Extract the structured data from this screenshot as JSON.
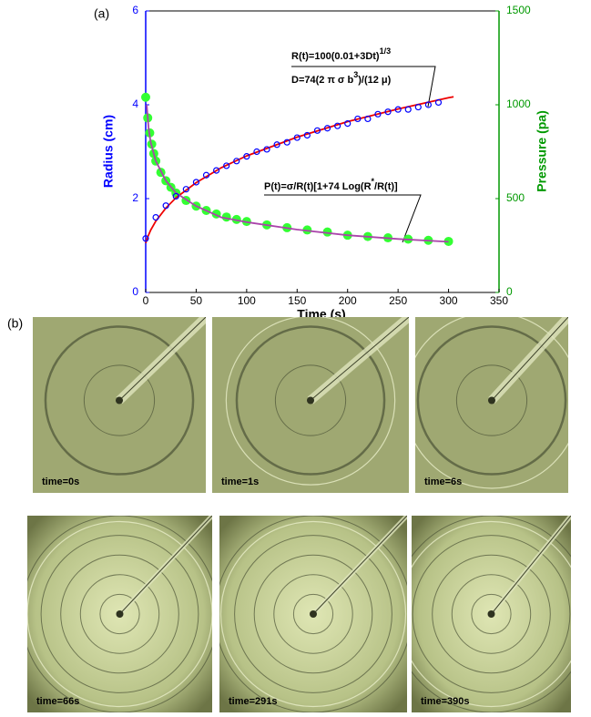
{
  "chart_data": {
    "type": "line",
    "panel_label": "(a)",
    "xlabel": "Time (s)",
    "ylabel": "Radius (cm)",
    "y2label": "Pressure (pa)",
    "y_color": "#0000ff",
    "y2_color": "#009900",
    "xlim": [
      0,
      350
    ],
    "xticks": [
      0,
      50,
      100,
      150,
      200,
      250,
      300,
      350
    ],
    "ylim": [
      0,
      6
    ],
    "yticks": [
      0,
      2,
      4,
      6
    ],
    "y2lim": [
      0,
      1500
    ],
    "y2ticks": [
      0,
      500,
      1000,
      1500
    ],
    "grid": false,
    "series": [
      {
        "marker": "open-circle",
        "color": "#0000ff",
        "x": [
          0,
          10,
          20,
          30,
          40,
          50,
          60,
          70,
          80,
          90,
          100,
          110,
          120,
          130,
          140,
          150,
          160,
          170,
          180,
          190,
          200,
          210,
          220,
          230,
          240,
          250,
          260,
          270,
          280,
          290
        ],
        "values": [
          1.15,
          1.6,
          1.85,
          2.05,
          2.2,
          2.35,
          2.5,
          2.6,
          2.7,
          2.8,
          2.9,
          3.0,
          3.05,
          3.15,
          3.2,
          3.3,
          3.35,
          3.45,
          3.5,
          3.55,
          3.6,
          3.7,
          3.7,
          3.8,
          3.85,
          3.9,
          3.9,
          3.95,
          4.0,
          4.05
        ]
      },
      {
        "marker": "line",
        "color": "#ee0000",
        "x": [
          0,
          2,
          5,
          10,
          20,
          30,
          50,
          75,
          100,
          150,
          200,
          250,
          300,
          305
        ],
        "values": [
          1.05,
          1.18,
          1.33,
          1.52,
          1.8,
          2.02,
          2.34,
          2.66,
          2.91,
          3.31,
          3.64,
          3.91,
          4.15,
          4.17
        ]
      },
      {
        "marker": "filled-circle",
        "color": "#33ff33",
        "axis": "y2",
        "x": [
          0,
          2,
          4,
          6,
          8,
          10,
          15,
          20,
          25,
          30,
          40,
          50,
          60,
          70,
          80,
          90,
          100,
          120,
          140,
          160,
          180,
          200,
          220,
          240,
          260,
          280,
          300
        ],
        "values": [
          1040,
          930,
          850,
          790,
          740,
          700,
          640,
          595,
          560,
          530,
          490,
          460,
          437,
          418,
          402,
          389,
          378,
          360,
          345,
          333,
          322,
          305,
          298,
          291,
          284,
          278,
          272
        ]
      },
      {
        "marker": "line",
        "color": "#aa44aa",
        "axis": "y2",
        "x": [
          1,
          3,
          5,
          10,
          20,
          30,
          50,
          75,
          100,
          150,
          200,
          250,
          300
        ],
        "values": [
          1000,
          870,
          800,
          700,
          595,
          530,
          460,
          400,
          375,
          335,
          305,
          285,
          270
        ]
      }
    ],
    "annotations": [
      {
        "parts": [
          {
            "base": "R(t)=100(0.01+3Dt)"
          },
          {
            "sup": "1/3"
          }
        ]
      },
      {
        "parts": [
          {
            "base": "D=74(2 π σ b"
          },
          {
            "sup": "3"
          },
          {
            "base": ")/(12 μ)"
          }
        ]
      },
      {
        "parts": [
          {
            "base": "P(t)=σ/R(t)[1+74 Log(R"
          },
          {
            "sup": "*"
          },
          {
            "base": "/R(t)]"
          }
        ]
      }
    ]
  },
  "photo_panel": {
    "label": "(b)",
    "photos": [
      {
        "caption": "time=0s"
      },
      {
        "caption": "time=1s"
      },
      {
        "caption": "time=6s"
      },
      {
        "caption": "time=66s"
      },
      {
        "caption": "time=291s"
      },
      {
        "caption": "time=390s"
      }
    ]
  }
}
